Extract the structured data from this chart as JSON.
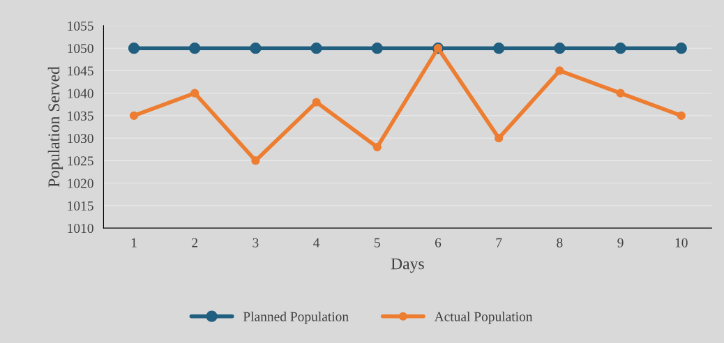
{
  "chart_data": {
    "type": "line",
    "xlabel": "Days",
    "ylabel": "Population Served",
    "categories": [
      "1",
      "2",
      "3",
      "4",
      "5",
      "6",
      "7",
      "8",
      "9",
      "10"
    ],
    "series": [
      {
        "name": "Planned Population",
        "color": "#215f80",
        "values": [
          1050,
          1050,
          1050,
          1050,
          1050,
          1050,
          1050,
          1050,
          1050,
          1050
        ]
      },
      {
        "name": "Actual Population",
        "color": "#ed7d31",
        "values": [
          1035,
          1040,
          1025,
          1038,
          1028,
          1050,
          1030,
          1045,
          1040,
          1035
        ]
      }
    ],
    "ylim": [
      1010,
      1055
    ],
    "yticks": [
      1010,
      1015,
      1020,
      1025,
      1030,
      1035,
      1040,
      1045,
      1050,
      1055
    ],
    "grid": "y",
    "legend": "bottom",
    "marker": "circle",
    "line_style": "solid"
  }
}
